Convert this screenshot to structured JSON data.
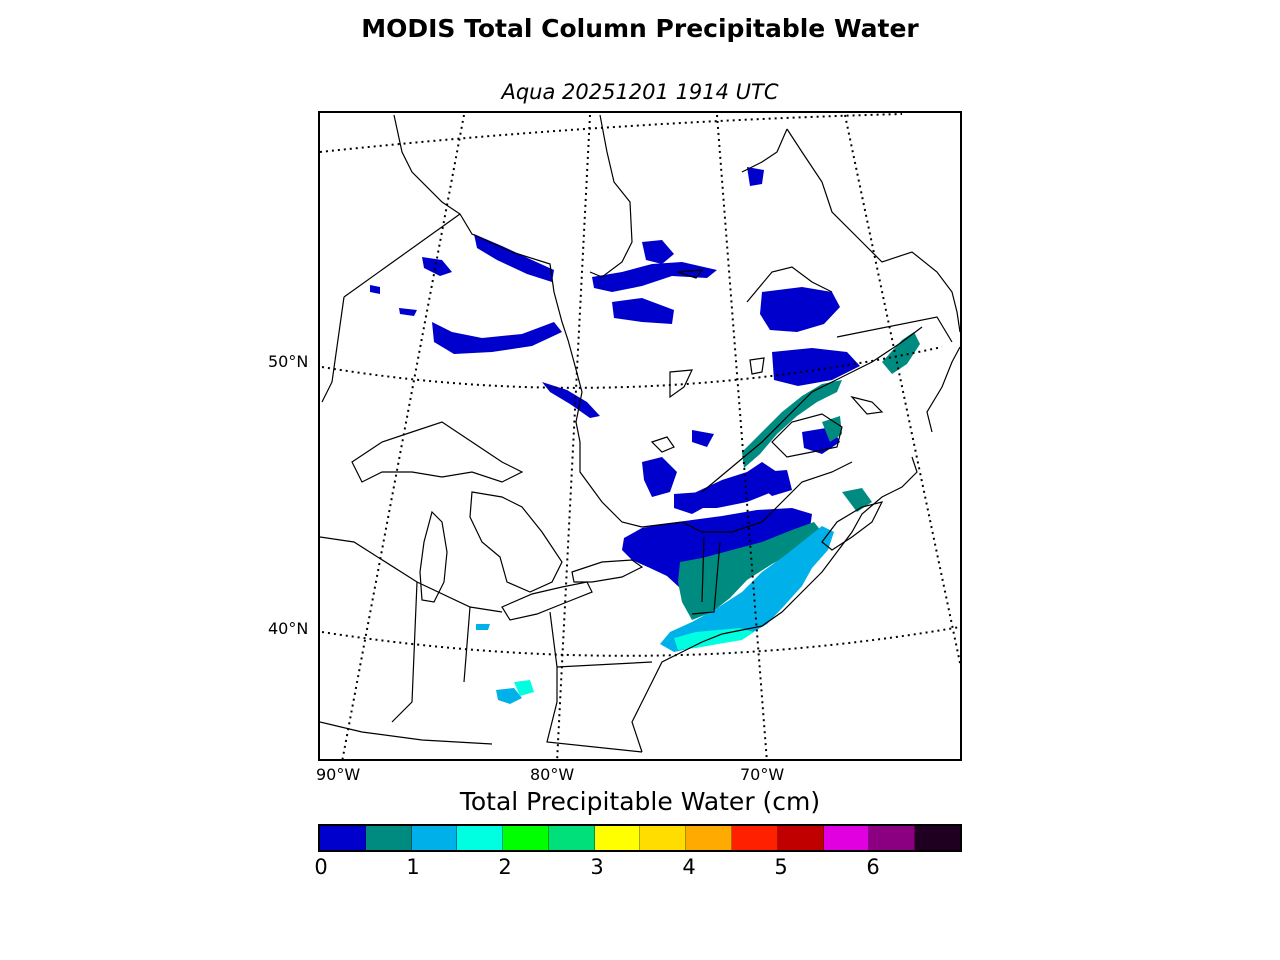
{
  "title": "MODIS Total Column Precipitable Water",
  "subtitle": "Aqua 20251201 1914 UTC",
  "map": {
    "lat_labels": [
      "50°N",
      "40°N"
    ],
    "lon_labels": [
      "90°W",
      "80°W",
      "70°W"
    ],
    "colors": {
      "blue": "#0000cc",
      "teal": "#008b80",
      "skyblue": "#00b0e8",
      "cyan": "#00ffe0",
      "coastline": "#000000",
      "graticule": "#000000"
    }
  },
  "colorbar": {
    "title": "Total Precipitable Water (cm)",
    "ticks": [
      "0",
      "1",
      "2",
      "3",
      "4",
      "5",
      "6"
    ],
    "colors": [
      "#0000cc",
      "#008b80",
      "#00b0e8",
      "#00ffe0",
      "#00ff00",
      "#00e07a",
      "#ffff00",
      "#ffdd00",
      "#ffaa00",
      "#ff2000",
      "#c00000",
      "#e000e0",
      "#8b0080",
      "#200020"
    ]
  }
}
